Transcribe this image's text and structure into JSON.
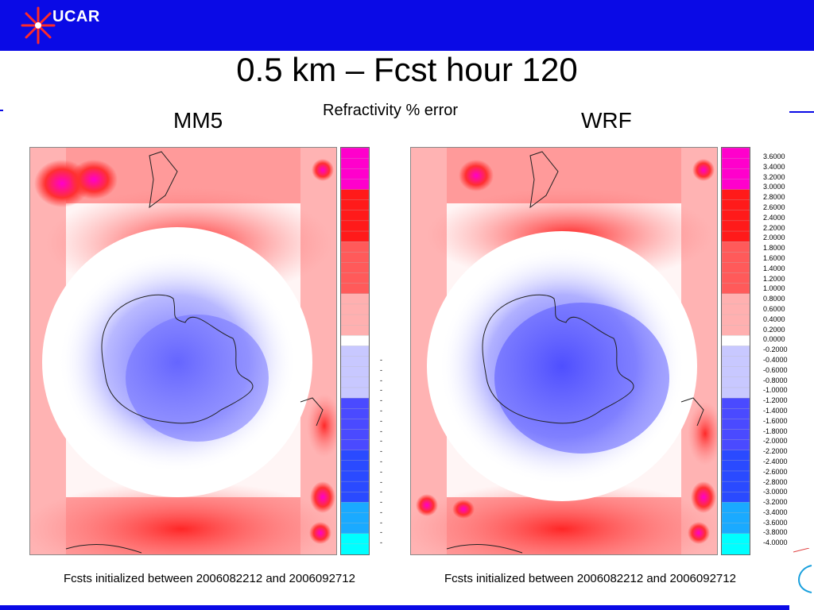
{
  "header": {
    "logo_text": "UCAR"
  },
  "slide": {
    "title": "0.5 km – Fcst hour 120",
    "subtitle": "Refractivity % error"
  },
  "panels": [
    {
      "label": "MM5",
      "caption": "Fcsts initialized between 2006082212 and 2006092712"
    },
    {
      "label": "WRF",
      "caption": "Fcsts initialized between 2006082212 and 2006092712"
    }
  ],
  "colorbar": {
    "levels": [
      "3.6000",
      "3.4000",
      "3.2000",
      "3.0000",
      "2.8000",
      "2.6000",
      "2.4000",
      "2.2000",
      "2.0000",
      "1.8000",
      "1.6000",
      "1.4000",
      "1.2000",
      "1.0000",
      "0.8000",
      "0.6000",
      "0.4000",
      "0.2000",
      "0.0000",
      "-0.2000",
      "-0.4000",
      "-0.6000",
      "-0.8000",
      "-1.0000",
      "-1.2000",
      "-1.4000",
      "-1.6000",
      "-1.8000",
      "-2.0000",
      "-2.2000",
      "-2.4000",
      "-2.6000",
      "-2.8000",
      "-3.0000",
      "-3.2000",
      "-3.4000",
      "-3.6000",
      "-3.8000",
      "-4.0000"
    ],
    "colors": {
      "max": "#ff00cc",
      "high": "#ff1a1a",
      "low_positive": "#ffd6d6",
      "zero": "#ffffff",
      "low_negative": "#c8c8ff",
      "mid_negative": "#4a4aff",
      "strong_negative": "#1a66ff",
      "min": "#00ffff"
    }
  },
  "colors": {
    "brand_blue": "#0a0ae6"
  }
}
